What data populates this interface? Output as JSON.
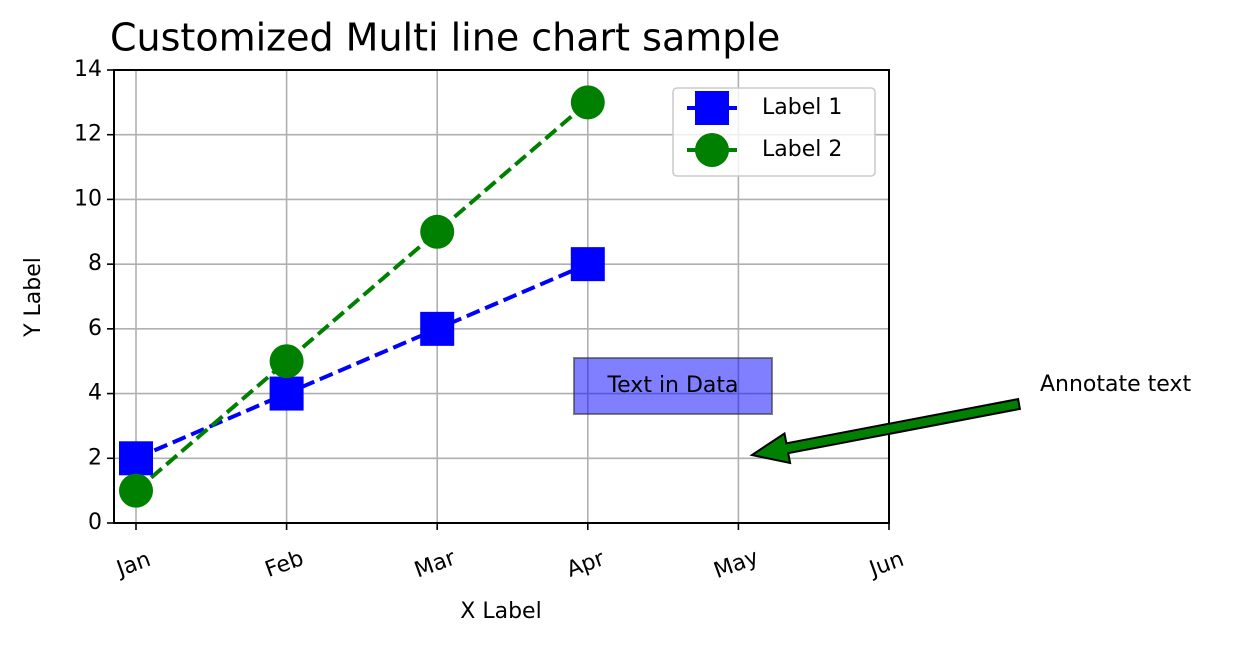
{
  "chart_data": {
    "type": "line",
    "title": "Customized Multi line chart sample",
    "x_label": "X Label",
    "y_label": "Y Label",
    "categories": [
      "Jan",
      "Feb",
      "Mar",
      "Apr",
      "May",
      "Jun"
    ],
    "series": [
      {
        "name": "Label 1",
        "color": "#0000ff",
        "marker": "square",
        "line_style": "dashed",
        "values": [
          2,
          4,
          6,
          8,
          null,
          null
        ]
      },
      {
        "name": "Label 2",
        "color": "#008000",
        "marker": "circle",
        "line_style": "dashed",
        "values": [
          1,
          5,
          9,
          13,
          null,
          null
        ]
      }
    ],
    "ylim": [
      0,
      14
    ],
    "yticks": [
      0,
      2,
      4,
      6,
      8,
      10,
      12,
      14
    ],
    "grid": true,
    "legend": "upper right",
    "annotations": [
      "Text in Data",
      "Annotate text"
    ]
  }
}
